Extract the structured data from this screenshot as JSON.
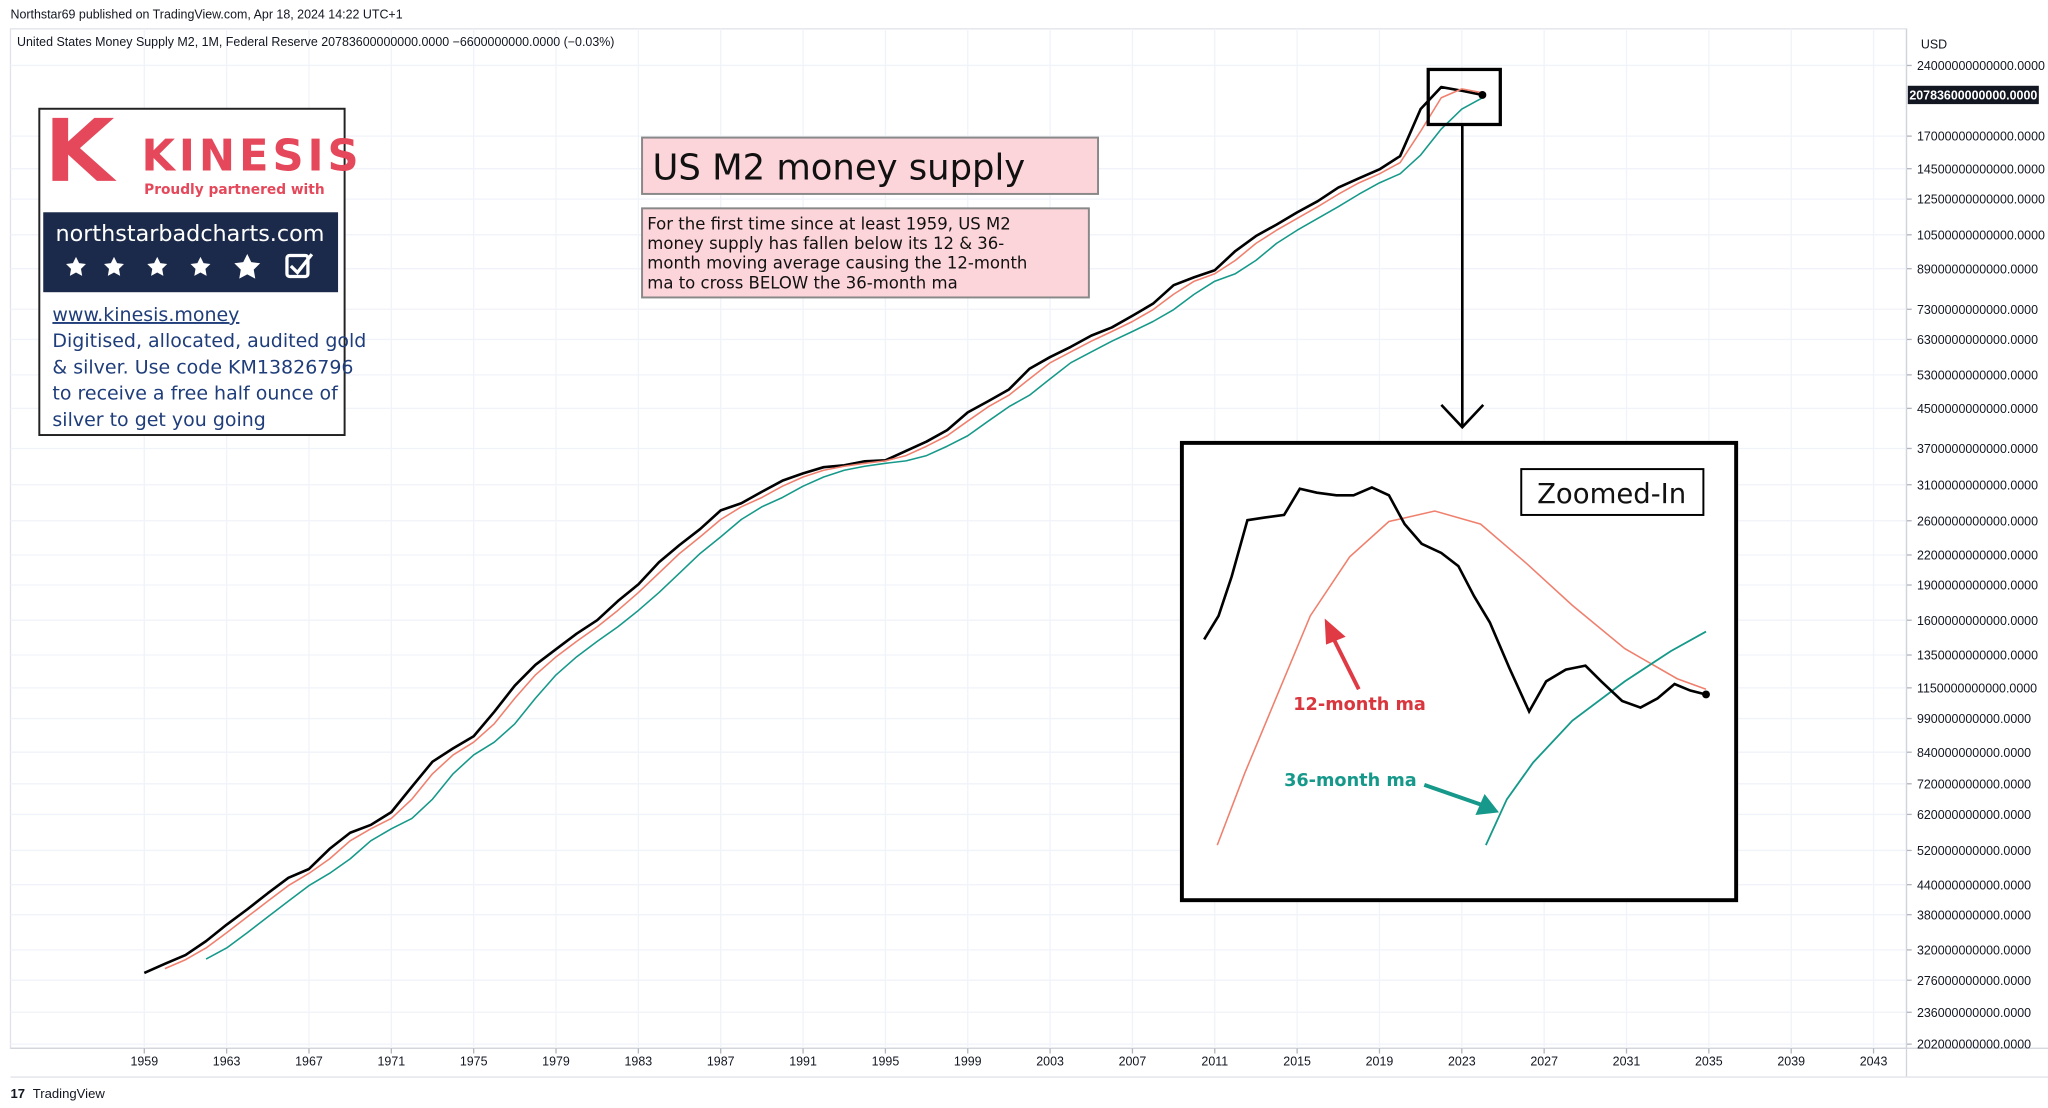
{
  "header": "Northstar69 published on TradingView.com, Apr 18, 2024 14:22 UTC+1",
  "footer": "TradingView",
  "ad": {
    "brand": "KINESIS",
    "tagline": "Proudly partnered with",
    "site": "northstarbadcharts.com",
    "link": "www.kinesis.money",
    "body": [
      "Digitised, allocated, audited gold",
      "& silver. Use code KM13826796",
      "to receive a free half ounce of",
      "silver to get you going"
    ]
  },
  "chart_data": {
    "type": "line",
    "legend_text": "United States Money Supply M2, 1M, Federal Reserve  20783600000000.0000  −6600000000.0000 (−0.03%)",
    "title": "US M2 money supply",
    "subtitle": [
      "For the first time since at least 1959, US M2",
      "money supply has fallen below its 12 & 36-",
      "month moving average causing the 12-month",
      "ma to cross BELOW the 36-month ma"
    ],
    "inset_title": "Zoomed-In",
    "annotations": [
      "12-month ma",
      "36-month ma"
    ],
    "y_unit": "USD",
    "price_label": {
      "value": 20783600000000.0,
      "label": "20783600000000.0000"
    },
    "log_scale": true,
    "grid": true,
    "x": [
      1959,
      1960,
      1961,
      1962,
      1963,
      1964,
      1965,
      1966,
      1967,
      1968,
      1969,
      1970,
      1971,
      1972,
      1973,
      1974,
      1975,
      1976,
      1977,
      1978,
      1979,
      1980,
      1981,
      1982,
      1983,
      1984,
      1985,
      1986,
      1987,
      1988,
      1989,
      1990,
      1991,
      1992,
      1993,
      1994,
      1995,
      1996,
      1997,
      1998,
      1999,
      2000,
      2001,
      2002,
      2003,
      2004,
      2005,
      2006,
      2007,
      2008,
      2009,
      2010,
      2011,
      2012,
      2013,
      2014,
      2015,
      2016,
      2017,
      2018,
      2019,
      2020,
      2021,
      2022,
      2023,
      2024
    ],
    "series": [
      {
        "name": "M2",
        "color": "#000000",
        "values": [
          286000000000.0,
          299000000000.0,
          312000000000.0,
          334000000000.0,
          362000000000.0,
          390000000000.0,
          422000000000.0,
          455000000000.0,
          475000000000.0,
          524000000000.0,
          567000000000.0,
          589000000000.0,
          627000000000.0,
          710000000000.0,
          802000000000.0,
          856000000000.0,
          908000000000.0,
          1023000000000.0,
          1163000000000.0,
          1287000000000.0,
          1389000000000.0,
          1498000000000.0,
          1600000000000.0,
          1756000000000.0,
          1906000000000.0,
          2123000000000.0,
          2310000000000.0,
          2497000000000.0,
          2735000000000.0,
          2832000000000.0,
          2995000000000.0,
          3162000000000.0,
          3277000000000.0,
          3377000000000.0,
          3409000000000.0,
          3475000000000.0,
          3492000000000.0,
          3656000000000.0,
          3827000000000.0,
          4047000000000.0,
          4413000000000.0,
          4662000000000.0,
          4935000000000.0,
          5461000000000.0,
          5781000000000.0,
          6075000000000.0,
          6418000000000.0,
          6681000000000.0,
          7073000000000.0,
          7502000000000.0,
          8210000000000.0,
          8534000000000.0,
          8834000000000.0,
          9702000000000.0,
          10437000000000.0,
          11037000000000.0,
          11714000000000.0,
          12374000000000.0,
          13226000000000.0,
          13834000000000.0,
          14455000000000.0,
          15414000000000.0,
          19405000000000.0,
          21598000000000.0,
          21214000000000.0,
          20783600000000.0
        ]
      },
      {
        "name": "12-month ma",
        "color": "#f0806e",
        "values": [
          null,
          292000000000.0,
          305000000000.0,
          323000000000.0,
          348000000000.0,
          376000000000.0,
          406000000000.0,
          438000000000.0,
          465000000000.0,
          499000000000.0,
          545000000000.0,
          578000000000.0,
          608000000000.0,
          668000000000.0,
          756000000000.0,
          829000000000.0,
          882000000000.0,
          965000000000.0,
          1093000000000.0,
          1225000000000.0,
          1338000000000.0,
          1443000000000.0,
          1549000000000.0,
          1678000000000.0,
          1831000000000.0,
          2014000000000.0,
          2216000000000.0,
          2403000000000.0,
          2616000000000.0,
          2783000000000.0,
          2913000000000.0,
          3078000000000.0,
          3219000000000.0,
          3327000000000.0,
          3393000000000.0,
          3442000000000.0,
          3483000000000.0,
          3574000000000.0,
          3741000000000.0,
          3937000000000.0,
          4230000000000.0,
          4537000000000.0,
          4798000000000.0,
          5198000000000.0,
          5621000000000.0,
          5928000000000.0,
          6246000000000.0,
          6549000000000.0,
          6877000000000.0,
          7287000000000.0,
          7856000000000.0,
          8372000000000.0,
          8684000000000.0,
          9268000000000.0,
          10069000000000.0,
          10737000000000.0,
          11375000000000.0,
          12044000000000.0,
          12800000000000.0,
          13530000000000.0,
          14144000000000.0,
          14934000000000.0,
          17410000000000.0,
          20500000000000.0,
          21406000000000.0,
          20999000000000.0
        ]
      },
      {
        "name": "36-month ma",
        "color": "#16998a",
        "values": [
          null,
          null,
          null,
          306000000000.0,
          323000000000.0,
          348000000000.0,
          376000000000.0,
          406000000000.0,
          438000000000.0,
          465000000000.0,
          499000000000.0,
          545000000000.0,
          578000000000.0,
          608000000000.0,
          668000000000.0,
          756000000000.0,
          829000000000.0,
          882000000000.0,
          965000000000.0,
          1093000000000.0,
          1225000000000.0,
          1338000000000.0,
          1443000000000.0,
          1549000000000.0,
          1678000000000.0,
          1831000000000.0,
          2014000000000.0,
          2216000000000.0,
          2403000000000.0,
          2616000000000.0,
          2783000000000.0,
          2913000000000.0,
          3078000000000.0,
          3219000000000.0,
          3327000000000.0,
          3393000000000.0,
          3442000000000.0,
          3483000000000.0,
          3574000000000.0,
          3741000000000.0,
          3937000000000.0,
          4230000000000.0,
          4537000000000.0,
          4798000000000.0,
          5198000000000.0,
          5621000000000.0,
          5928000000000.0,
          6246000000000.0,
          6549000000000.0,
          6877000000000.0,
          7287000000000.0,
          7856000000000.0,
          8372000000000.0,
          8684000000000.0,
          9268000000000.0,
          10069000000000.0,
          10737000000000.0,
          11375000000000.0,
          12044000000000.0,
          12800000000000.0,
          13530000000000.0,
          14144000000000.0,
          15500000000000.0,
          17600000000000.0,
          19400000000000.0,
          20500000000000.0
        ]
      }
    ],
    "xlim": [
      1952.5,
      2044.6
    ],
    "xticks": [
      1959,
      1963,
      1967,
      1971,
      1975,
      1979,
      1983,
      1987,
      1991,
      1995,
      1999,
      2003,
      2007,
      2011,
      2015,
      2019,
      2023,
      2027,
      2031,
      2035,
      2039,
      2043
    ],
    "ylim": [
      198000000000.0,
      28700000000000.0
    ],
    "yticks": [
      {
        "value": 24000000000000.0,
        "label": "24000000000000.0000"
      },
      {
        "value": 17000000000000.0,
        "label": "17000000000000.0000"
      },
      {
        "value": 14500000000000.0,
        "label": "14500000000000.0000"
      },
      {
        "value": 12500000000000.0,
        "label": "12500000000000.0000"
      },
      {
        "value": 10500000000000.0,
        "label": "10500000000000.0000"
      },
      {
        "value": 8900000000000.0,
        "label": "8900000000000.0000"
      },
      {
        "value": 7300000000000.0,
        "label": "7300000000000.0000"
      },
      {
        "value": 6300000000000.0,
        "label": "6300000000000.0000"
      },
      {
        "value": 5300000000000.0,
        "label": "5300000000000.0000"
      },
      {
        "value": 4500000000000.0,
        "label": "4500000000000.0000"
      },
      {
        "value": 3700000000000.0,
        "label": "3700000000000.0000"
      },
      {
        "value": 3100000000000.0,
        "label": "3100000000000.0000"
      },
      {
        "value": 2600000000000.0,
        "label": "2600000000000.0000"
      },
      {
        "value": 2200000000000.0,
        "label": "2200000000000.0000"
      },
      {
        "value": 1900000000000.0,
        "label": "1900000000000.0000"
      },
      {
        "value": 1600000000000.0,
        "label": "1600000000000.0000"
      },
      {
        "value": 1350000000000.0,
        "label": "1350000000000.0000"
      },
      {
        "value": 1150000000000.0,
        "label": "1150000000000.0000"
      },
      {
        "value": 990000000000.0,
        "label": "990000000000.0000"
      },
      {
        "value": 840000000000.0,
        "label": "840000000000.0000"
      },
      {
        "value": 720000000000.0,
        "label": "720000000000.0000"
      },
      {
        "value": 620000000000.0,
        "label": "620000000000.0000"
      },
      {
        "value": 520000000000.0,
        "label": "520000000000.0000"
      },
      {
        "value": 440000000000.0,
        "label": "440000000000.0000"
      },
      {
        "value": 380000000000.0,
        "label": "380000000000.0000"
      },
      {
        "value": 320000000000.0,
        "label": "320000000000.0000"
      },
      {
        "value": 276000000000.0,
        "label": "276000000000.0000"
      },
      {
        "value": 236000000000.0,
        "label": "236000000000.0000"
      },
      {
        "value": 202000000000.0,
        "label": "202000000000.0000"
      }
    ]
  }
}
